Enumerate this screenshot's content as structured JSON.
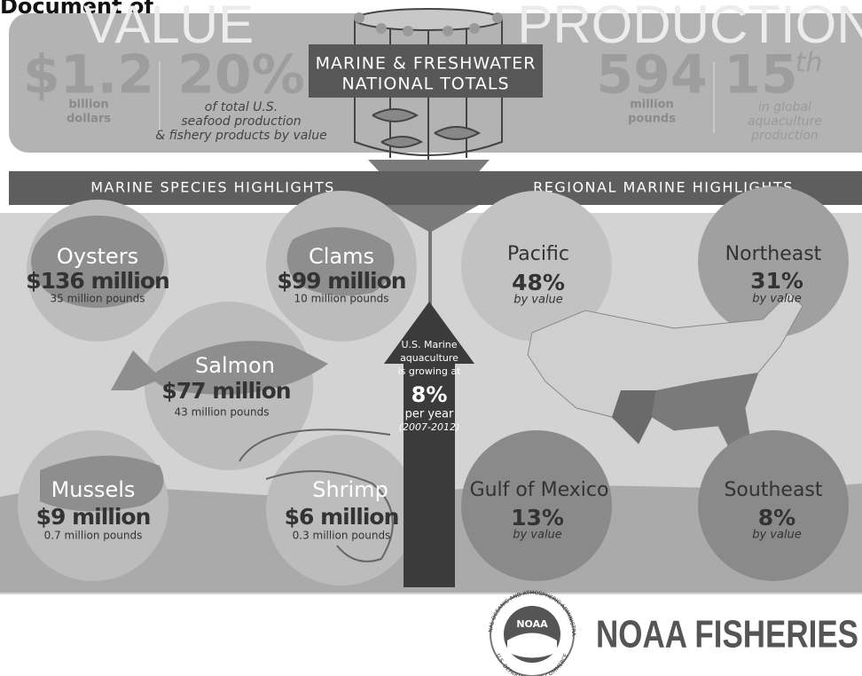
{
  "header": {
    "doc_title": "Document of",
    "value_title": "VALUE",
    "production_title": "PRODUCTION",
    "value_stats": [
      {
        "number": "$1.2",
        "lines": [
          "billion",
          "dollars"
        ]
      },
      {
        "number": "20%",
        "lines": [
          "of total U.S.",
          "seafood production",
          "& fishery products by value"
        ]
      }
    ],
    "production_stats": [
      {
        "number": "594",
        "lines": [
          "million",
          "pounds"
        ]
      },
      {
        "number": "15",
        "superscript": "th",
        "lines": [
          "in global",
          "aquaculture",
          "production"
        ]
      }
    ],
    "center_label": [
      "MARINE & FRESHWATER",
      "NATIONAL TOTALS"
    ]
  },
  "banners": {
    "left": "MARINE SPECIES HIGHLIGHTS",
    "right": "REGIONAL MARINE HIGHLIGHTS"
  },
  "species": [
    {
      "name": "Oysters",
      "value": "$136 million",
      "weight": "35 million pounds"
    },
    {
      "name": "Clams",
      "value": "$99 million",
      "weight": "10 million pounds"
    },
    {
      "name": "Salmon",
      "value": "$77 million",
      "weight": "43 million pounds"
    },
    {
      "name": "Mussels",
      "value": "$9 million",
      "weight": "0.7 million pounds"
    },
    {
      "name": "Shrimp",
      "value": "$6 million",
      "weight": "0.3 million pounds"
    }
  ],
  "growth": {
    "lines": [
      "U.S. Marine",
      "aquaculture",
      "is growing at"
    ],
    "rate": "8%",
    "unit": "per year",
    "period": "(2007-2012)"
  },
  "regions": [
    {
      "name": "Pacific",
      "share": "48%",
      "note": "by value"
    },
    {
      "name": "Northeast",
      "share": "31%",
      "note": "by value"
    },
    {
      "name": "Gulf of Mexico",
      "share": "13%",
      "note": "by value"
    },
    {
      "name": "Southeast",
      "share": "8%",
      "note": "by value"
    }
  ],
  "logo": {
    "emblem": "NOAA",
    "seal_top": "NATIONAL OCEANIC AND ATMOSPHERIC ADMINISTRATION",
    "seal_bottom": "U.S. DEPARTMENT OF COMMERCE",
    "wordmark": "NOAA FISHERIES"
  }
}
